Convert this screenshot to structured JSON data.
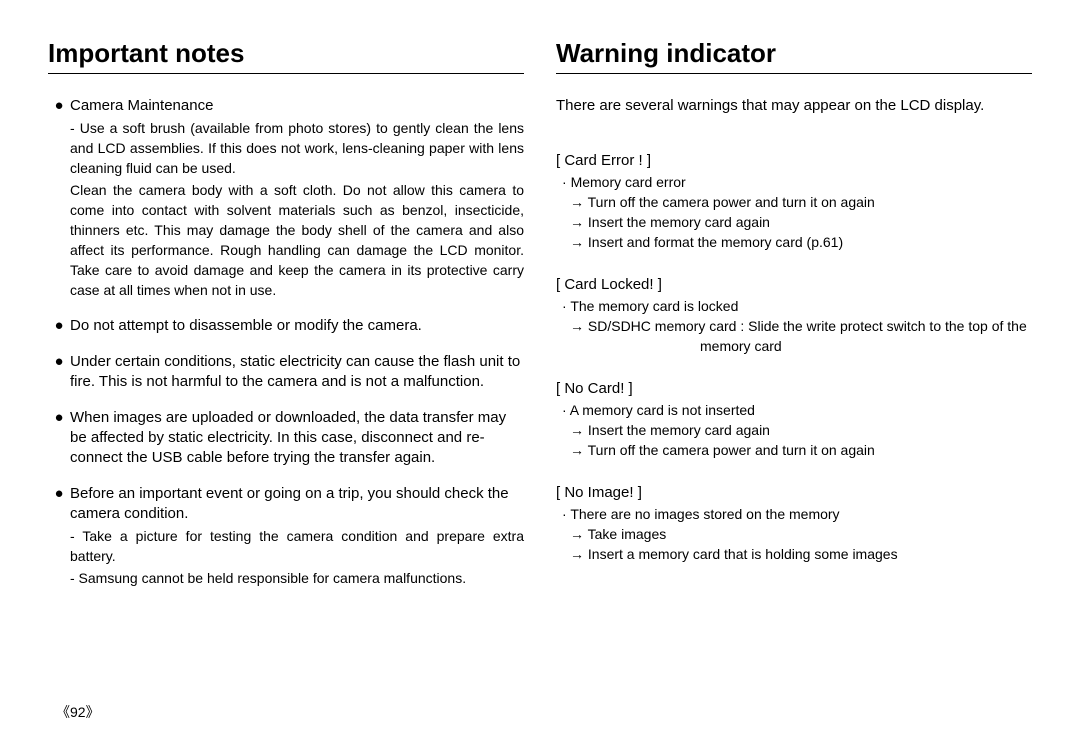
{
  "left": {
    "heading": "Important notes",
    "items": [
      {
        "title": "Camera Maintenance",
        "subLines": [
          "- Use a soft brush (available from photo stores) to gently clean the lens and LCD assemblies. If this does not work, lens-cleaning paper with lens cleaning fluid can be used.",
          "Clean the camera body with a soft cloth. Do not allow this camera to come into contact with solvent materials such as benzol, insecticide, thinners etc. This may damage the body shell of the camera and also affect its performance. Rough handling can damage the LCD monitor. Take care to avoid damage and keep the camera in its protective carry case at all times when not in use."
        ]
      },
      {
        "title": "Do not attempt to disassemble or modify the camera."
      },
      {
        "title": "Under certain conditions, static electricity can cause the flash unit to fire. This is not harmful to the camera and is not a malfunction."
      },
      {
        "title": "When images are uploaded or downloaded, the data transfer may be affected by static electricity. In this case, disconnect and re-connect the USB cable before trying the transfer again."
      },
      {
        "title": "Before an important event or going on a trip, you should check the camera condition.",
        "subLines": [
          "- Take a picture for testing the camera condition and prepare extra battery.",
          "- Samsung cannot be held responsible for camera malfunctions."
        ]
      }
    ]
  },
  "right": {
    "heading": "Warning indicator",
    "intro": "There are several warnings that may appear on the LCD display.",
    "warnings": [
      {
        "title": "[ Card Error ! ]",
        "desc": "Memory card error",
        "arrows": [
          "Turn off the camera power and turn it on again",
          "Insert the memory card again",
          "Insert and format the memory card (p.61)"
        ]
      },
      {
        "title": "[ Card Locked! ]",
        "desc": "The memory card is locked",
        "arrows": [
          "SD/SDHC memory card : Slide the write protect switch to the top of the"
        ],
        "cont": "memory card"
      },
      {
        "title": "[ No Card! ]",
        "desc": "A memory card is not inserted",
        "arrows": [
          "Insert the memory card again",
          "Turn off the camera power and turn it on again"
        ]
      },
      {
        "title": "[ No Image! ]",
        "desc": "There are no images stored on the memory",
        "arrows": [
          "Take images",
          "Insert a memory card that is holding some images"
        ]
      }
    ]
  },
  "pageNumber": "《92》"
}
